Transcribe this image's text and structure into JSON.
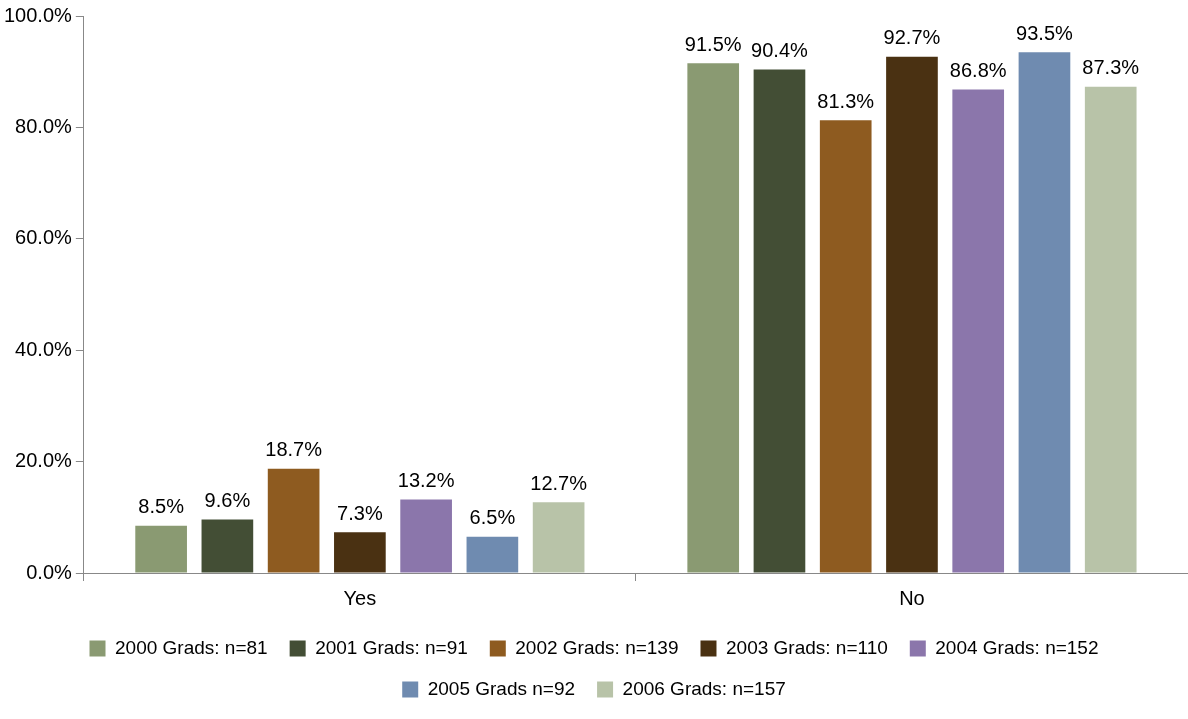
{
  "chart_data": {
    "type": "bar",
    "categories": [
      "Yes",
      "No"
    ],
    "series": [
      {
        "name": "2000 Grads: n=81",
        "color": "#8a9a72",
        "values": [
          8.5,
          91.5
        ],
        "value_labels": [
          "8.5%",
          "91.5%"
        ]
      },
      {
        "name": "2001 Grads: n=91",
        "color": "#434e35",
        "values": [
          9.6,
          90.4
        ],
        "value_labels": [
          "9.6%",
          "90.4%"
        ]
      },
      {
        "name": "2002 Grads: n=139",
        "color": "#8e5b20",
        "values": [
          18.7,
          81.3
        ],
        "value_labels": [
          "18.7%",
          "81.3%"
        ]
      },
      {
        "name": "2003 Grads: n=110",
        "color": "#4a3112",
        "values": [
          7.3,
          92.7
        ],
        "value_labels": [
          "7.3%",
          "92.7%"
        ]
      },
      {
        "name": "2004 Grads: n=152",
        "color": "#8b76ab",
        "values": [
          13.2,
          86.8
        ],
        "value_labels": [
          "13.2%",
          "86.8%"
        ]
      },
      {
        "name": "2005 Grads n=92",
        "color": "#6f8bb0",
        "values": [
          6.5,
          93.5
        ],
        "value_labels": [
          "6.5%",
          "93.5%"
        ]
      },
      {
        "name": "2006 Grads: n=157",
        "color": "#b8c3a8",
        "values": [
          12.7,
          87.3
        ],
        "value_labels": [
          "12.7%",
          "87.3%"
        ]
      }
    ],
    "ylim": [
      0,
      100
    ],
    "yticks": [
      {
        "value": 0,
        "label": "0.0%"
      },
      {
        "value": 20,
        "label": "20.0%"
      },
      {
        "value": 40,
        "label": "40.0%"
      },
      {
        "value": 60,
        "label": "60.0%"
      },
      {
        "value": 80,
        "label": "80.0%"
      },
      {
        "value": 100,
        "label": "100.0%"
      }
    ],
    "grid": false,
    "legend": "bottom"
  }
}
